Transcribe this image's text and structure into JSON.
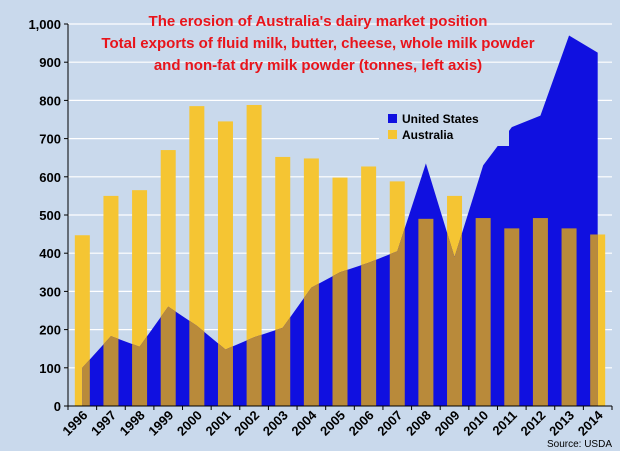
{
  "chart_data": {
    "type": "bar",
    "title_lines": [
      "The erosion of Australia's dairy market position",
      "Total exports of fluid milk, butter, cheese, whole milk powder",
      "and non-fat dry milk powder (tonnes, left axis)"
    ],
    "categories": [
      "1996",
      "1997",
      "1998",
      "1999",
      "2000",
      "2001",
      "2002",
      "2003",
      "2004",
      "2005",
      "2006",
      "2007",
      "2008",
      "2009",
      "2010",
      "2011",
      "2012",
      "2013",
      "2014"
    ],
    "series": [
      {
        "name": "United States",
        "chart_type": "area",
        "color": "#1010e0",
        "values": [
          100,
          183,
          155,
          260,
          210,
          148,
          180,
          205,
          310,
          350,
          375,
          405,
          635,
          390,
          630,
          730,
          760,
          970,
          925
        ]
      },
      {
        "name": "Australia",
        "chart_type": "bar",
        "color": "#f5c533",
        "values": [
          447,
          550,
          565,
          670,
          785,
          745,
          788,
          652,
          648,
          598,
          627,
          588,
          490,
          550,
          492,
          465,
          492,
          465,
          449
        ]
      }
    ],
    "ylim": [
      0,
      1000
    ],
    "yticks": [
      "0",
      "100",
      "200",
      "300",
      "400",
      "500",
      "600",
      "700",
      "800",
      "900",
      "1,000"
    ],
    "ytick_values": [
      0,
      100,
      200,
      300,
      400,
      500,
      600,
      700,
      800,
      900,
      1000
    ],
    "grid": true,
    "legend_position": "center-right",
    "source": "Source: USDA",
    "colors": {
      "background": "#c9d9ec",
      "title": "#e8141b",
      "grid": "#ffffff",
      "overlap": "#b98a3a"
    }
  }
}
